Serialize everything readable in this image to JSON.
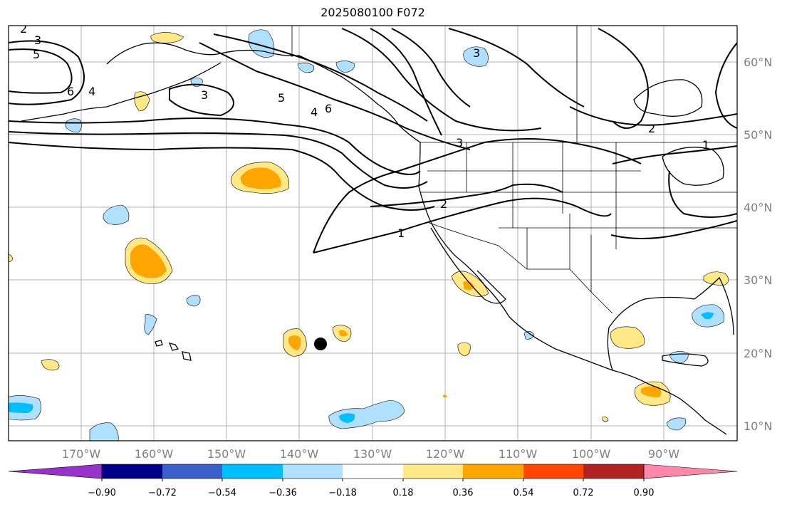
{
  "title": "2025080100 F072",
  "map": {
    "lon_labels": [
      "170°W",
      "160°W",
      "150°W",
      "140°W",
      "130°W",
      "120°W",
      "110°W",
      "100°W",
      "90°W"
    ],
    "lat_labels": [
      "60°N",
      "50°N",
      "40°N",
      "30°N",
      "20°N",
      "10°N"
    ],
    "contour_labels": [
      "2",
      "3",
      "5",
      "6",
      "4",
      "3",
      "5",
      "4",
      "6",
      "3",
      "2",
      "1",
      "2",
      "1",
      "3"
    ],
    "marker": "black-dot"
  },
  "colorbar": {
    "ticks": [
      "−0.90",
      "−0.72",
      "−0.54",
      "−0.36",
      "−0.18",
      "0.18",
      "0.36",
      "0.54",
      "0.72",
      "0.90"
    ],
    "colors": [
      "#9932cc",
      "#00008b",
      "#3a5fcd",
      "#00bfff",
      "#afe0ff",
      "#ffffff",
      "#ffe885",
      "#ffa500",
      "#ff4500",
      "#b22222",
      "#ff88aa"
    ]
  }
}
